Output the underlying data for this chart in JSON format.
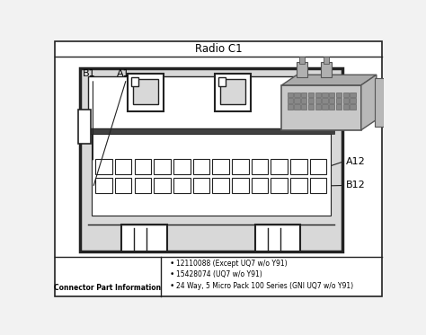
{
  "title": "Radio C1",
  "bg_color": "#f2f2f2",
  "border_color": "#222222",
  "title_fontsize": 8.5,
  "label_fontsize": 8,
  "small_fontsize": 6,
  "bottom_text": [
    "12110088 (Except UQ7 w/o Y91)",
    "15428074 (UQ7 w/o Y91)",
    "24 Way, 5 Micro Pack 100 Series (GNI UQ7 w/o Y91)"
  ],
  "bottom_left_text": "Connector Part Information",
  "pin_rows": 2,
  "pin_cols": 12
}
